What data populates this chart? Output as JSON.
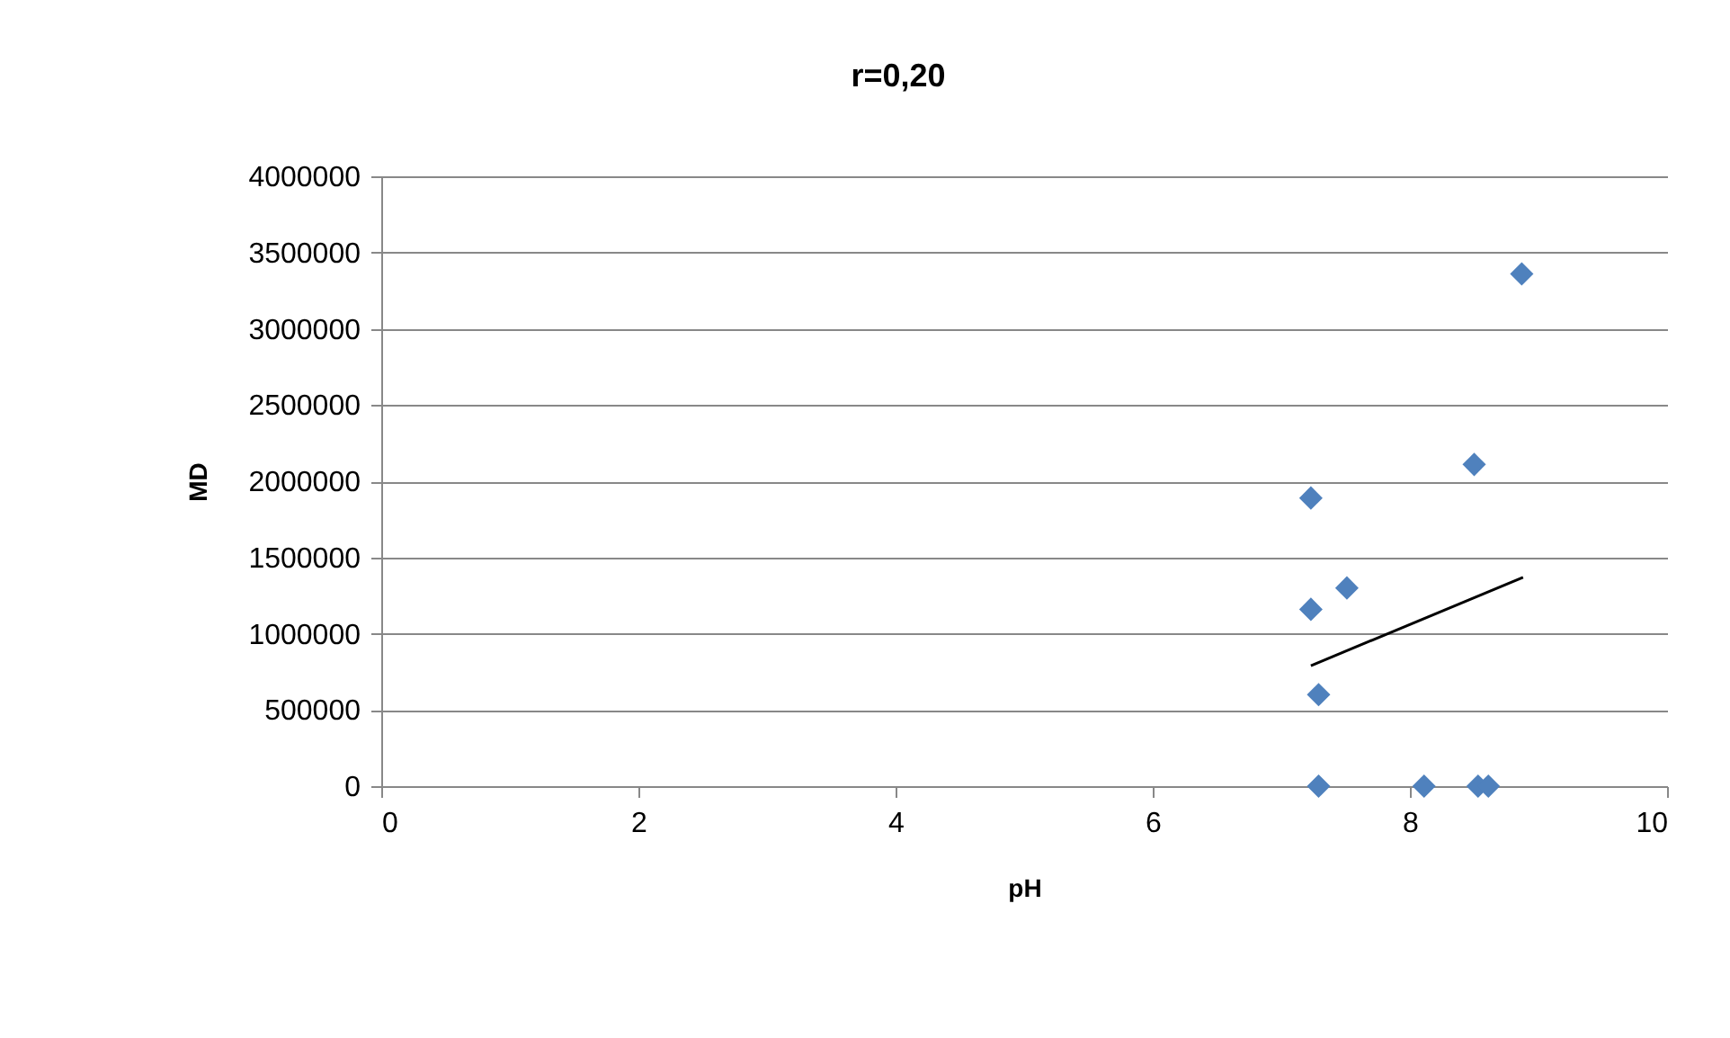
{
  "chart_data": {
    "type": "scatter",
    "title": "r=0,20",
    "xlabel": "pH",
    "ylabel": "MD",
    "xlim": [
      0,
      10
    ],
    "xticks": [
      0,
      2,
      4,
      6,
      8,
      10
    ],
    "ylim": [
      0,
      4000000
    ],
    "yticks": [
      0,
      500000,
      1000000,
      1500000,
      2000000,
      2500000,
      3000000,
      3500000,
      4000000
    ],
    "grid": "y",
    "marker": "diamond",
    "series": [
      {
        "color": "#4f81bd",
        "x": [
          8.87,
          8.5,
          7.23,
          7.51,
          7.23,
          7.29,
          7.29,
          8.11,
          8.53,
          8.61
        ],
        "values": [
          3360000,
          2110000,
          1890000,
          1300000,
          1160000,
          600000,
          0,
          0,
          0,
          0
        ]
      },
      {
        "type": "line",
        "color": "#000000",
        "marker": "none",
        "x": [
          7.23,
          8.88
        ],
        "values": [
          790000,
          1370000
        ]
      }
    ]
  }
}
